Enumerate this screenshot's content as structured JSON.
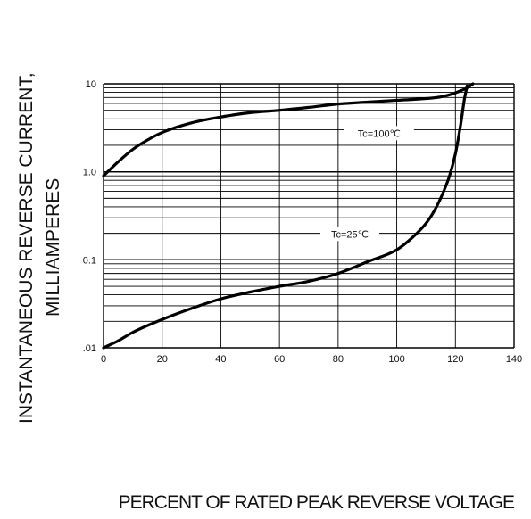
{
  "chart_data": {
    "type": "line",
    "title": "",
    "xlabel": "PERCENT OF RATED PEAK REVERSE VOLTAGE",
    "ylabel_line1": "INSTANTANEOUS REVERSE CURRENT,",
    "ylabel_line2": "MILLIAMPERES",
    "xlim": [
      0,
      140
    ],
    "ylim": [
      0.01,
      10
    ],
    "yscale": "log",
    "grid": true,
    "x_ticks": [
      0,
      20,
      40,
      60,
      80,
      100,
      120,
      140
    ],
    "x_tick_labels": [
      "0",
      "20",
      "40",
      "60",
      "80",
      "100",
      "120",
      "140"
    ],
    "y_ticks": [
      0.01,
      0.1,
      1.0,
      10
    ],
    "y_tick_labels": [
      ".01",
      "0.1",
      "1.0",
      "10"
    ],
    "series": [
      {
        "name": "Tc=100℃",
        "x": [
          0,
          5,
          10,
          15,
          20,
          30,
          40,
          50,
          60,
          70,
          80,
          90,
          100,
          110,
          115,
          118,
          120,
          122,
          124,
          126
        ],
        "y": [
          0.9,
          1.3,
          1.8,
          2.3,
          2.8,
          3.6,
          4.2,
          4.7,
          5.0,
          5.4,
          5.9,
          6.2,
          6.5,
          6.8,
          7.1,
          7.5,
          7.9,
          8.4,
          9.0,
          10.0
        ]
      },
      {
        "name": "Tc=25℃",
        "x": [
          0,
          5,
          10,
          20,
          30,
          40,
          50,
          60,
          70,
          80,
          90,
          100,
          105,
          110,
          113,
          116,
          118,
          120,
          121,
          122,
          123,
          124
        ],
        "y": [
          0.01,
          0.012,
          0.015,
          0.021,
          0.028,
          0.036,
          0.043,
          0.05,
          0.057,
          0.07,
          0.095,
          0.13,
          0.175,
          0.26,
          0.37,
          0.6,
          0.9,
          1.6,
          2.4,
          3.8,
          6.5,
          9.5
        ]
      }
    ]
  }
}
